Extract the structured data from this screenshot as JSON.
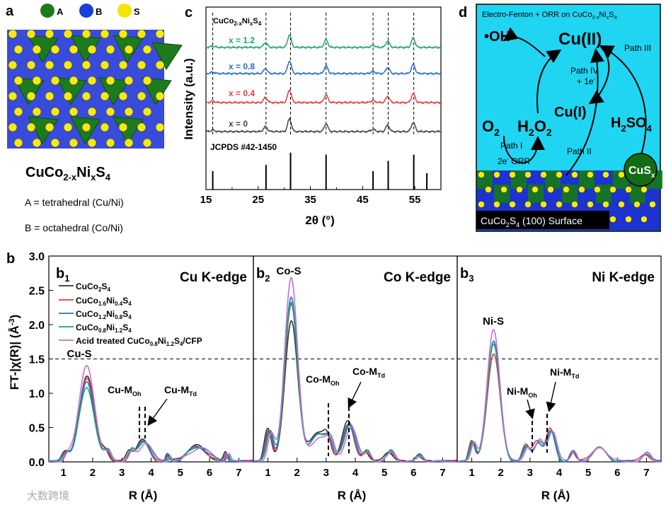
{
  "panel_a": {
    "label": "a",
    "legend": [
      {
        "name": "A",
        "color": "#1b7a1b"
      },
      {
        "name": "B",
        "color": "#1a3fd6"
      },
      {
        "name": "S",
        "color": "#f2e600"
      }
    ],
    "formula_main": "CuCo",
    "formula_sub1": "2-x",
    "formula_mid": "Ni",
    "formula_sub2": "x",
    "formula_end": "S",
    "formula_sub3": "4",
    "note_a": "A = tetrahedral (Cu/Ni)",
    "note_b": "B = octahedral (Co/Ni)"
  },
  "panel_c": {
    "label": "c",
    "title_main": "CuCo",
    "title_sub1": "2-x",
    "title_mid": "Ni",
    "title_sub2": "x",
    "title_end": "S",
    "title_sub3": "4",
    "ylabel": "Intensity (a.u.)",
    "xlabel": "2θ (°)",
    "ref_label": "JCPDS #42-1450",
    "xticks": [
      "15",
      "25",
      "35",
      "45",
      "55"
    ]
  },
  "panel_d": {
    "label": "d",
    "title": "Electro-Fenton + ORR on CuCo",
    "title_sub1": "2-x",
    "title_mid": "Ni",
    "title_sub2": "x",
    "title_end": "S",
    "title_sub3": "4",
    "oh": "•OH",
    "cu2": "Cu(II)",
    "cu1": "Cu(I)",
    "o2_main": "O",
    "o2_sub": "2",
    "h2o2_h": "H",
    "h2o2_s1": "2",
    "h2o2_o": "O",
    "h2o2_s2": "2",
    "h2so4_h": "H",
    "h2so4_s1": "2",
    "h2so4_so": "SO",
    "h2so4_s2": "4",
    "path1": "Path I",
    "path2": "Path II",
    "path3": "Path III",
    "path4": "Path IV",
    "plus_e": "+ 1e",
    "orr_2e": "2e",
    "orr_text": " ORR",
    "cus": "CuS",
    "cus_sub": "x",
    "surface_pre": "CuCo",
    "surface_sub": "2",
    "surface_mid": "S",
    "surface_sub2": "4",
    "surface_post": " (100) Surface"
  },
  "panel_b": {
    "label": "b",
    "ylabel": "FT-|χ(R)| (Å",
    "ylabel_sup": "-3",
    "ylabel_end": ")",
    "xlabel": "R (Å)",
    "yticks": [
      "0.0",
      "0.5",
      "1.0",
      "1.5",
      "2.0",
      "2.5",
      "3.0"
    ],
    "xticks": [
      "1",
      "2",
      "3",
      "4",
      "5",
      "6",
      "7"
    ],
    "sub1": {
      "label": "b",
      "idx": "1",
      "edge": "Cu K-edge",
      "peak": "Cu-S",
      "m_oh": "Cu-M",
      "m_td": "Cu-M"
    },
    "sub2": {
      "label": "b",
      "idx": "2",
      "edge": "Co K-edge",
      "peak": "Co-S",
      "m_oh": "Co-M",
      "m_td": "Co-M"
    },
    "sub3": {
      "label": "b",
      "idx": "3",
      "edge": "Ni K-edge",
      "peak": "Ni-S",
      "m_oh": "Ni-M",
      "m_td": "Ni-M"
    },
    "oh_sub": "Oh",
    "td_sub": "Td",
    "legend": [
      {
        "pre": "CuCo",
        "s1": "2",
        "mid": "S",
        "s2": "4",
        "tail": "",
        "s3": "",
        "end": "",
        "s4": "",
        "post": ""
      },
      {
        "pre": "CuCo",
        "s1": "1.6",
        "mid": "Ni",
        "s2": "0.4",
        "tail": "S",
        "s3": "4",
        "end": "",
        "s4": "",
        "post": ""
      },
      {
        "pre": "CuCo",
        "s1": "1.2",
        "mid": "Ni",
        "s2": "0.8",
        "tail": "S",
        "s3": "4",
        "end": "",
        "s4": "",
        "post": ""
      },
      {
        "pre": "CuCo",
        "s1": "0.8",
        "mid": "Ni",
        "s2": "1.2",
        "tail": "S",
        "s3": "4",
        "end": "",
        "s4": "",
        "post": ""
      },
      {
        "pre": "Acid treated CuCo",
        "s1": "0.8",
        "mid": "Ni",
        "s2": "1.2",
        "tail": "S",
        "s3": "4",
        "end": "/CFP",
        "s4": "",
        "post": ""
      }
    ]
  },
  "watermark": "大数跨境",
  "chart_data": [
    {
      "type": "line",
      "title": "CuCo2-xNixS4 XRD",
      "xlabel": "2θ (°)",
      "ylabel": "Intensity (a.u.)",
      "xlim": [
        15,
        60
      ],
      "series": [
        {
          "name": "x = 0",
          "color": "#444444",
          "peaks": [
            26.4,
            31.0,
            38.0,
            49.8,
            54.7
          ]
        },
        {
          "name": "x = 0.4",
          "color": "#e23b3b",
          "peaks": [
            26.4,
            31.0,
            38.0,
            49.8,
            54.7
          ]
        },
        {
          "name": "x = 0.8",
          "color": "#1f6fd0",
          "peaks": [
            26.4,
            31.0,
            38.0,
            49.8,
            54.7
          ]
        },
        {
          "name": "x = 1.2",
          "color": "#19a56b",
          "peaks": [
            26.4,
            31.0,
            38.0,
            49.8,
            54.7
          ]
        }
      ],
      "reference": {
        "name": "JCPDS #42-1450",
        "positions": [
          16.3,
          26.5,
          31.2,
          38.0,
          47.0,
          49.9,
          54.8,
          57.3
        ],
        "heights": [
          0.45,
          0.6,
          0.9,
          0.85,
          0.45,
          0.7,
          0.85,
          0.4
        ]
      }
    },
    {
      "type": "line",
      "title": "Cu K-edge",
      "xlabel": "R (Å)",
      "ylabel": "FT-|χ(R)| (Å-3)",
      "xlim": [
        0.5,
        7.5
      ],
      "ylim": [
        0,
        3.0
      ],
      "series": [
        {
          "name": "CuCo2S4",
          "color": "#333333",
          "peak_R": 1.8,
          "peak": 1.25
        },
        {
          "name": "CuCo1.6Ni0.4S4",
          "color": "#e23b3b",
          "peak_R": 1.8,
          "peak": 1.2
        },
        {
          "name": "CuCo1.2Ni0.8S4",
          "color": "#1f6fd0",
          "peak_R": 1.8,
          "peak": 1.15
        },
        {
          "name": "CuCo0.8Ni1.2S4",
          "color": "#19a56b",
          "peak_R": 1.8,
          "peak": 1.08
        },
        {
          "name": "Acid treated CuCo0.8Ni1.2S4/CFP",
          "color": "#c36ee0",
          "peak_R": 1.8,
          "peak": 1.42
        }
      ]
    },
    {
      "type": "line",
      "title": "Co K-edge",
      "xlabel": "R (Å)",
      "xlim": [
        0.5,
        7.5
      ],
      "ylim": [
        0,
        3.0
      ],
      "series": [
        {
          "name": "CuCo2S4",
          "color": "#333333",
          "peak_R": 1.8,
          "peak": 2.05
        },
        {
          "name": "CuCo1.6Ni0.4S4",
          "color": "#e23b3b",
          "peak_R": 1.8,
          "peak": 2.28
        },
        {
          "name": "CuCo1.2Ni0.8S4",
          "color": "#1f6fd0",
          "peak_R": 1.8,
          "peak": 2.38
        },
        {
          "name": "CuCo0.8Ni1.2S4",
          "color": "#19a56b",
          "peak_R": 1.8,
          "peak": 2.32
        },
        {
          "name": "Acid treated CuCo0.8Ni1.2S4/CFP",
          "color": "#c36ee0",
          "peak_R": 1.8,
          "peak": 2.7
        }
      ]
    },
    {
      "type": "line",
      "title": "Ni K-edge",
      "xlabel": "R (Å)",
      "xlim": [
        0.5,
        7.5
      ],
      "ylim": [
        0,
        3.0
      ],
      "series": [
        {
          "name": "CuCo1.6Ni0.4S4",
          "color": "#e23b3b",
          "peak_R": 1.75,
          "peak": 1.58
        },
        {
          "name": "CuCo1.2Ni0.8S4",
          "color": "#1f6fd0",
          "peak_R": 1.75,
          "peak": 1.75
        },
        {
          "name": "CuCo0.8Ni1.2S4",
          "color": "#19a56b",
          "peak_R": 1.75,
          "peak": 1.7
        },
        {
          "name": "Acid treated CuCo0.8Ni1.2S4/CFP",
          "color": "#c36ee0",
          "peak_R": 1.75,
          "peak": 1.92
        }
      ]
    }
  ]
}
